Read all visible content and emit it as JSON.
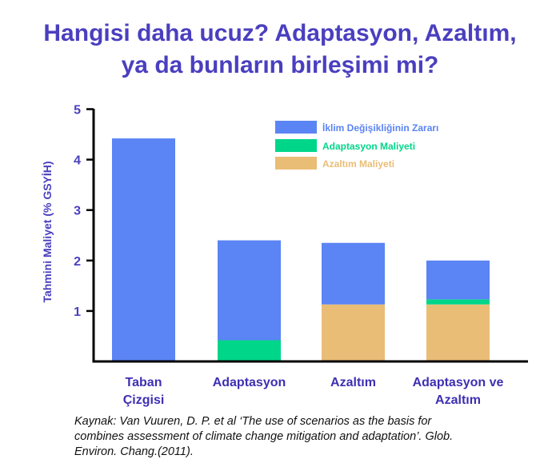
{
  "title_lines": [
    "Hangisi daha ucuz? Adaptasyon, Azaltım,",
    "ya da bunların birleşimi mi?"
  ],
  "source_lines": [
    "Kaynak: Van Vuuren, D. P. et al ‘The use of scenarios as the basis for",
    "combines assessment of climate change mitigation and adaptation’. Glob.",
    "Environ. Chang.(2011)."
  ],
  "colors": {
    "title": "#4a3fbf",
    "axis_text": "#4a3fbf",
    "category_text": "#3d2fb3",
    "damage": "#5b84f4",
    "adaptation": "#00d68a",
    "mitigation": "#e9bd76"
  },
  "chart_data": {
    "type": "bar",
    "stacked": true,
    "categories": [
      [
        "Taban",
        "Çizgisi"
      ],
      [
        "Adaptasyon"
      ],
      [
        "Azaltım"
      ],
      [
        "Adaptasyon ve",
        "Azaltım"
      ]
    ],
    "series": [
      {
        "name": "Azaltım Maliyeti",
        "color": "#e9bd76",
        "values": [
          0,
          0,
          1.13,
          1.13
        ]
      },
      {
        "name": "Adaptasyon Maliyeti",
        "color": "#00d68a",
        "values": [
          0,
          0.42,
          0,
          0.1
        ]
      },
      {
        "name": "İklim Değişikliğinin Zararı",
        "color": "#5b84f4",
        "values": [
          4.42,
          1.98,
          1.22,
          0.77
        ]
      }
    ],
    "legend_order": [
      "İklim Değişikliğinin Zararı",
      "Adaptasyon Maliyeti",
      "Azaltım Maliyeti"
    ],
    "ylabel": "Tahmini Maliyet (% GSYİH)",
    "xlabel": "",
    "ylim": [
      0,
      5
    ],
    "yticks": [
      1,
      2,
      3,
      4,
      5
    ],
    "grid": false,
    "legend_position": "top-right"
  }
}
